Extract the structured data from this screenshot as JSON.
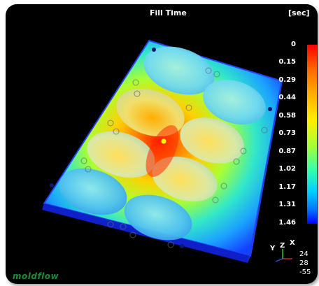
{
  "header": {
    "title": "Fill Time",
    "unit": "[sec]"
  },
  "legend": {
    "ticks": [
      "0",
      "0.15",
      "0.29",
      "0.44",
      "0.58",
      "0.73",
      "0.87",
      "1.02",
      "1.17",
      "1.31",
      "1.46"
    ],
    "colors": {
      "min": "#ff0000",
      "mid": "#ffee00",
      "max": "#0000ff"
    }
  },
  "axes": {
    "x_label": "X",
    "y_label": "Y",
    "z_label": "Z",
    "coords": [
      "24",
      "28",
      "-55"
    ]
  },
  "branding": {
    "logo_text": "moldflow"
  }
}
